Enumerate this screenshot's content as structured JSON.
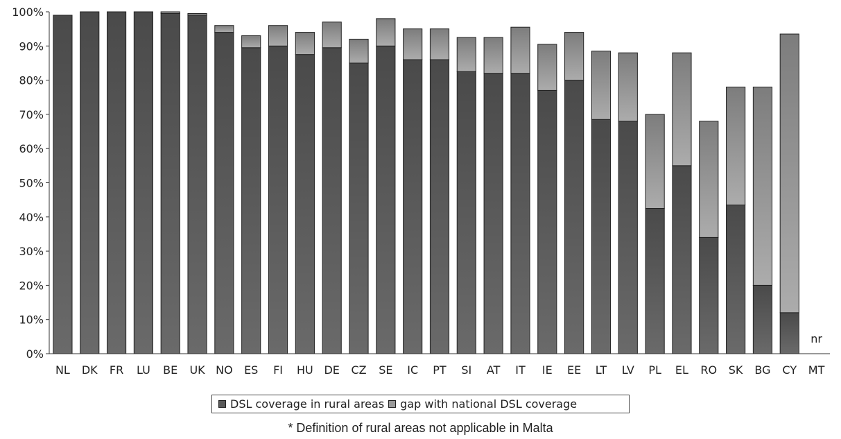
{
  "colors": {
    "rural": "#595959",
    "gap": "#9a9a9a",
    "axis": "#333333",
    "bar_outline": "#222222"
  },
  "chart_data": {
    "type": "bar",
    "stacked": true,
    "categories": [
      "NL",
      "DK",
      "FR",
      "LU",
      "BE",
      "UK",
      "NO",
      "ES",
      "FI",
      "HU",
      "DE",
      "CZ",
      "SE",
      "IC",
      "PT",
      "SI",
      "AT",
      "IT",
      "IE",
      "EE",
      "LT",
      "LV",
      "PL",
      "EL",
      "RO",
      "SK",
      "BG",
      "CY",
      "MT"
    ],
    "series": [
      {
        "name": "DSL coverage in rural areas",
        "values": [
          99,
          100,
          100,
          100,
          99.5,
          99,
          94,
          89.5,
          90,
          87.5,
          89.5,
          85,
          90,
          86,
          86,
          82.5,
          82,
          82,
          77,
          80,
          68.5,
          68,
          42.5,
          55,
          34,
          43.5,
          20,
          12,
          null
        ]
      },
      {
        "name": "gap with national DSL coverage",
        "values": [
          0,
          0,
          0,
          0,
          0.5,
          0.5,
          2,
          3.5,
          6,
          6.5,
          7.5,
          7,
          8,
          9,
          9,
          10,
          10.5,
          13.5,
          13.5,
          14,
          20,
          20,
          27.5,
          33,
          34,
          34.5,
          58,
          81.5,
          null
        ]
      }
    ],
    "annotations": [
      {
        "category": "MT",
        "text": "nr"
      }
    ],
    "ylim": [
      0,
      100
    ],
    "yticks": [
      "0%",
      "10%",
      "20%",
      "30%",
      "40%",
      "50%",
      "60%",
      "70%",
      "80%",
      "90%",
      "100%"
    ],
    "legend_position": "bottom",
    "footnote": "* Definition of rural areas not applicable in Malta"
  }
}
